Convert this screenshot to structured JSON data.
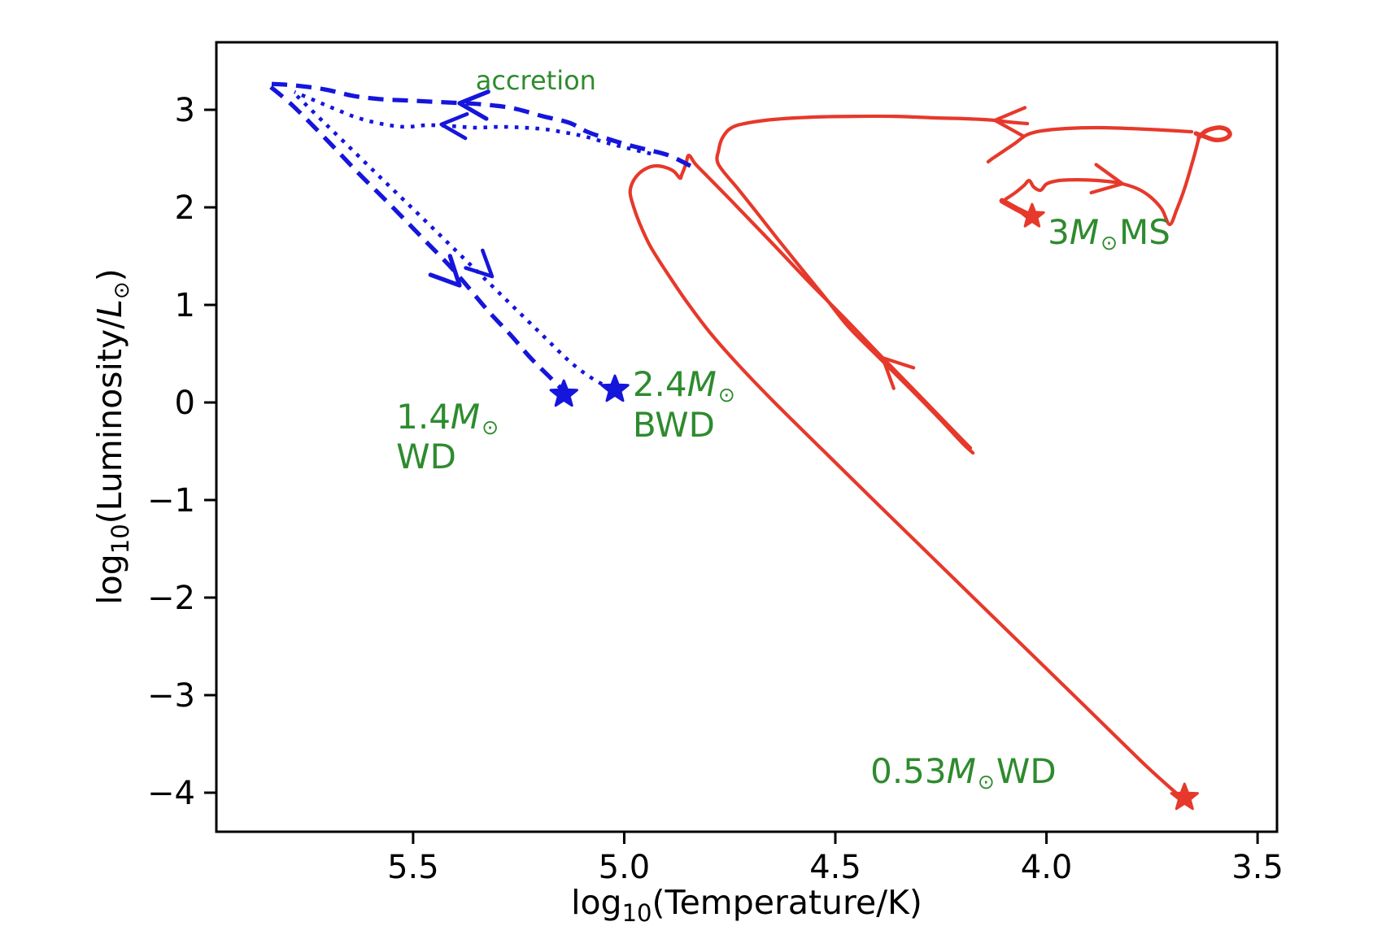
{
  "figure": {
    "background": "#ffffff"
  },
  "colors": {
    "red": "#e6392b",
    "blue": "#1515dc",
    "green": "#2e8b2e",
    "axis": "#000000"
  },
  "axes": {
    "xlim": [
      5.966,
      3.454
    ],
    "ylim": [
      -4.4,
      3.692
    ],
    "xticks": [
      {
        "v": 5.5,
        "label": "5.5"
      },
      {
        "v": 5.0,
        "label": "5.0"
      },
      {
        "v": 4.5,
        "label": "4.5"
      },
      {
        "v": 4.0,
        "label": "4.0"
      },
      {
        "v": 3.5,
        "label": "3.5"
      }
    ],
    "yticks": [
      {
        "v": 3,
        "label": "3"
      },
      {
        "v": 2,
        "label": "2"
      },
      {
        "v": 1,
        "label": "1"
      },
      {
        "v": 0,
        "label": "0"
      },
      {
        "v": -1,
        "label": "−1"
      },
      {
        "v": -2,
        "label": "−2"
      },
      {
        "v": -3,
        "label": "−3"
      },
      {
        "v": -4,
        "label": "−4"
      }
    ],
    "xlabel": {
      "pre": "log",
      "sub": "10",
      "post": "(Temperature/K)"
    },
    "ylabel": {
      "pre": "log",
      "sub": "10",
      "mid": "(Luminosity/",
      "emph": "L",
      "sun": "⊙",
      "close": ")"
    }
  },
  "chart_data": {
    "type": "line",
    "title": "",
    "xlabel": "log10(Temperature/K)",
    "ylabel": "log10(Luminosity/Lsun)",
    "x_axis_reversed": true,
    "grid": false,
    "series": [
      {
        "id": "red-ms-cusp",
        "legend": "3 Msun evolution (MS hook)",
        "color": "red",
        "style": "solid",
        "lw": 7,
        "points": [
          [
            4.034,
            1.908
          ],
          [
            4.07,
            1.983
          ],
          [
            4.105,
            2.067
          ]
        ]
      },
      {
        "id": "red-hook-sweep-rgb",
        "legend": "3 Msun evolution (MS to giant branch)",
        "color": "red",
        "style": "solid",
        "lw": 4.2,
        "points": [
          [
            4.097,
            2.083
          ],
          [
            4.074,
            2.15
          ],
          [
            4.053,
            2.225
          ],
          [
            4.041,
            2.275
          ],
          [
            4.03,
            2.208
          ],
          [
            4.014,
            2.175
          ],
          [
            3.999,
            2.242
          ],
          [
            3.97,
            2.275
          ],
          [
            3.926,
            2.283
          ],
          [
            3.878,
            2.275
          ],
          [
            3.829,
            2.25
          ],
          [
            3.785,
            2.192
          ],
          [
            3.754,
            2.108
          ],
          [
            3.727,
            1.983
          ],
          [
            3.708,
            1.825
          ],
          [
            3.691,
            1.983
          ],
          [
            3.673,
            2.192
          ],
          [
            3.658,
            2.408
          ],
          [
            3.646,
            2.592
          ],
          [
            3.639,
            2.717
          ]
        ]
      },
      {
        "id": "red-agb-blob",
        "legend": "giant-branch tip tangle",
        "color": "red",
        "style": "solid",
        "lw": 5.5,
        "points": [
          [
            3.639,
            2.717
          ],
          [
            3.625,
            2.775
          ],
          [
            3.606,
            2.808
          ],
          [
            3.587,
            2.817
          ],
          [
            3.571,
            2.792
          ],
          [
            3.566,
            2.742
          ],
          [
            3.579,
            2.7
          ],
          [
            3.602,
            2.692
          ],
          [
            3.625,
            2.725
          ],
          [
            3.646,
            2.758
          ]
        ]
      },
      {
        "id": "red-postagb-upper",
        "legend": "post-AGB zigzag",
        "color": "red",
        "style": "solid",
        "lw": 4.2,
        "points": [
          [
            3.656,
            2.775
          ],
          [
            3.724,
            2.792
          ],
          [
            3.801,
            2.808
          ],
          [
            3.878,
            2.817
          ],
          [
            3.955,
            2.808
          ],
          [
            4.013,
            2.783
          ],
          [
            4.047,
            2.742
          ],
          [
            4.074,
            2.658
          ],
          [
            4.105,
            2.567
          ],
          [
            4.128,
            2.5
          ],
          [
            4.138,
            2.467
          ]
        ]
      },
      {
        "id": "red-postagb-left-descent",
        "legend": "post-AGB leftward run and descent",
        "color": "red",
        "style": "solid",
        "lw": 4.2,
        "points": [
          [
            4.045,
            2.858
          ],
          [
            4.09,
            2.875
          ],
          [
            4.122,
            2.892
          ],
          [
            4.186,
            2.908
          ],
          [
            4.263,
            2.917
          ],
          [
            4.359,
            2.933
          ],
          [
            4.456,
            2.933
          ],
          [
            4.552,
            2.925
          ],
          [
            4.648,
            2.9
          ],
          [
            4.716,
            2.858
          ],
          [
            4.749,
            2.808
          ],
          [
            4.768,
            2.708
          ],
          [
            4.776,
            2.592
          ],
          [
            4.777,
            2.442
          ],
          [
            4.731,
            2.192
          ],
          [
            4.685,
            1.942
          ],
          [
            4.635,
            1.667
          ],
          [
            4.581,
            1.375
          ],
          [
            4.521,
            1.058
          ],
          [
            4.469,
            0.775
          ],
          [
            4.396,
            0.458
          ],
          [
            4.319,
            0.125
          ],
          [
            4.253,
            -0.167
          ],
          [
            4.199,
            -0.417
          ],
          [
            4.174,
            -0.517
          ]
        ]
      },
      {
        "id": "red-ascent-spike-wd",
        "legend": "re-ascent, knee and WD cooling to 0.53 Msun WD",
        "color": "red",
        "style": "solid",
        "lw": 4.2,
        "points": [
          [
            4.18,
            -0.467
          ],
          [
            4.244,
            -0.183
          ],
          [
            4.311,
            0.117
          ],
          [
            4.388,
            0.458
          ],
          [
            4.475,
            0.85
          ],
          [
            4.562,
            1.233
          ],
          [
            4.648,
            1.625
          ],
          [
            4.735,
            2.017
          ],
          [
            4.799,
            2.3
          ],
          [
            4.831,
            2.442
          ],
          [
            4.847,
            2.533
          ],
          [
            4.854,
            2.442
          ],
          [
            4.864,
            2.333
          ],
          [
            4.868,
            2.3
          ],
          [
            4.882,
            2.367
          ],
          [
            4.901,
            2.408
          ],
          [
            4.924,
            2.425
          ],
          [
            4.943,
            2.408
          ],
          [
            4.964,
            2.35
          ],
          [
            4.98,
            2.258
          ],
          [
            4.986,
            2.15
          ],
          [
            4.978,
            2.008
          ],
          [
            4.964,
            1.842
          ],
          [
            4.939,
            1.608
          ],
          [
            4.903,
            1.358
          ],
          [
            4.855,
            1.05
          ],
          [
            4.797,
            0.717
          ],
          [
            4.731,
            0.392
          ],
          [
            4.648,
            0.017
          ],
          [
            4.533,
            -0.475
          ],
          [
            4.398,
            -1.05
          ],
          [
            4.244,
            -1.7
          ],
          [
            4.08,
            -2.392
          ],
          [
            3.916,
            -3.083
          ],
          [
            3.766,
            -3.717
          ],
          [
            3.685,
            -4.033
          ]
        ]
      },
      {
        "id": "blue-dashed-accretion-up",
        "legend": "accretion track (dashed) to hot apex",
        "color": "blue",
        "style": "dashed",
        "lw": 5.3,
        "points": [
          [
            4.843,
            2.425
          ],
          [
            4.895,
            2.533
          ],
          [
            4.947,
            2.592
          ],
          [
            4.999,
            2.65
          ],
          [
            5.043,
            2.708
          ],
          [
            5.088,
            2.775
          ],
          [
            5.13,
            2.867
          ],
          [
            5.192,
            2.933
          ],
          [
            5.265,
            3.017
          ],
          [
            5.342,
            3.058
          ],
          [
            5.419,
            3.075
          ],
          [
            5.496,
            3.092
          ],
          [
            5.573,
            3.108
          ],
          [
            5.641,
            3.142
          ],
          [
            5.708,
            3.208
          ],
          [
            5.781,
            3.25
          ],
          [
            5.843,
            3.267
          ]
        ]
      },
      {
        "id": "blue-dashed-cooling-down",
        "legend": "dashed cooling to 1.4 Msun WD",
        "color": "blue",
        "style": "dashed",
        "lw": 5.3,
        "points": [
          [
            5.837,
            3.233
          ],
          [
            5.785,
            3.042
          ],
          [
            5.708,
            2.708
          ],
          [
            5.631,
            2.358
          ],
          [
            5.554,
            2.025
          ],
          [
            5.477,
            1.683
          ],
          [
            5.403,
            1.35
          ],
          [
            5.323,
            0.942
          ],
          [
            5.269,
            0.692
          ],
          [
            5.222,
            0.458
          ],
          [
            5.178,
            0.267
          ],
          [
            5.143,
            0.117
          ]
        ]
      },
      {
        "id": "blue-dotted-accretion-up",
        "legend": "accretion track (dotted) to hot apex",
        "color": "blue",
        "style": "dotted",
        "lw": 4.6,
        "points": [
          [
            4.937,
            2.55
          ],
          [
            4.986,
            2.6
          ],
          [
            5.038,
            2.658
          ],
          [
            5.092,
            2.725
          ],
          [
            5.14,
            2.767
          ],
          [
            5.188,
            2.8
          ],
          [
            5.236,
            2.817
          ],
          [
            5.294,
            2.825
          ],
          [
            5.352,
            2.817
          ],
          [
            5.41,
            2.833
          ],
          [
            5.467,
            2.842
          ],
          [
            5.521,
            2.825
          ],
          [
            5.577,
            2.858
          ],
          [
            5.631,
            2.917
          ],
          [
            5.685,
            3.008
          ],
          [
            5.731,
            3.092
          ],
          [
            5.781,
            3.183
          ]
        ]
      },
      {
        "id": "blue-dotted-cooling-down",
        "legend": "dotted cooling to 2.4 Msun BWD",
        "color": "blue",
        "style": "dotted",
        "lw": 4.6,
        "points": [
          [
            5.775,
            3.142
          ],
          [
            5.708,
            2.858
          ],
          [
            5.635,
            2.55
          ],
          [
            5.562,
            2.242
          ],
          [
            5.488,
            1.933
          ],
          [
            5.415,
            1.625
          ],
          [
            5.342,
            1.317
          ],
          [
            5.269,
            1.008
          ],
          [
            5.196,
            0.7
          ],
          [
            5.126,
            0.408
          ],
          [
            5.068,
            0.225
          ],
          [
            5.03,
            0.15
          ]
        ]
      }
    ],
    "markers": [
      {
        "id": "star-1.4-wd",
        "shape": "star",
        "color": "blue",
        "R": 17,
        "r": 7.2,
        "at": [
          5.143,
          0.083
        ]
      },
      {
        "id": "star-2.4-bwd",
        "shape": "star",
        "color": "blue",
        "R": 17,
        "r": 7.2,
        "at": [
          5.022,
          0.133
        ]
      },
      {
        "id": "star-3-ms",
        "shape": "star",
        "color": "red",
        "R": 15,
        "r": 6.4,
        "at": [
          4.034,
          1.908
        ]
      },
      {
        "id": "star-0.53-wd",
        "shape": "star",
        "color": "red",
        "R": 17,
        "r": 7.2,
        "at": [
          3.673,
          -4.05
        ]
      }
    ],
    "arrows": [
      {
        "id": "arrow-dashed-accretion",
        "color": "blue",
        "lw": 5.3,
        "len": 38,
        "angle": 184,
        "at": [
          5.39,
          3.067
        ]
      },
      {
        "id": "arrow-dotted-accretion",
        "color": "blue",
        "lw": 4.6,
        "len": 34,
        "angle": 184,
        "at": [
          5.433,
          2.85
        ]
      },
      {
        "id": "arrow-dashed-cooling",
        "color": "blue",
        "lw": 5.3,
        "len": 38,
        "angle": 46,
        "at": [
          5.39,
          1.2
        ]
      },
      {
        "id": "arrow-dotted-cooling",
        "color": "blue",
        "lw": 4.6,
        "len": 34,
        "angle": 44,
        "at": [
          5.313,
          1.292
        ]
      },
      {
        "id": "arrow-red-sweep-right",
        "color": "red",
        "lw": 4.2,
        "len": 40,
        "angle": 10,
        "at": [
          3.82,
          2.242
        ]
      },
      {
        "id": "arrow-red-postagb-left",
        "color": "red",
        "lw": 4.2,
        "len": 40,
        "angle": 183,
        "at": [
          4.122,
          2.892
        ]
      },
      {
        "id": "arrow-red-ascent",
        "color": "red",
        "lw": 4.2,
        "len": 40,
        "angle": 224,
        "at": [
          4.388,
          0.458
        ]
      }
    ],
    "annotations": [
      {
        "id": "accretion",
        "at": [
          5.352,
          3.442
        ],
        "size": 32,
        "parts": [
          {
            "t": "accretion"
          }
        ],
        "line2": ""
      },
      {
        "id": "1.4msun-wd",
        "at": [
          5.54,
          0.042
        ],
        "size": 42,
        "parts": [
          {
            "t": "1.4"
          },
          {
            "t": "M",
            "i": true
          },
          {
            "t": "⊙",
            "sun": true
          }
        ],
        "line2": "WD"
      },
      {
        "id": "2.4msun-bwd",
        "at": [
          4.98,
          0.375
        ],
        "size": 42,
        "parts": [
          {
            "t": "2.4"
          },
          {
            "t": "M",
            "i": true
          },
          {
            "t": "⊙",
            "sun": true
          }
        ],
        "line2": "BWD"
      },
      {
        "id": "3msun-ms",
        "at": [
          3.997,
          1.933
        ],
        "size": 42,
        "parts": [
          {
            "t": "3"
          },
          {
            "t": "M",
            "i": true
          },
          {
            "t": "⊙",
            "sun": true
          },
          {
            "t": "MS"
          }
        ],
        "line2": ""
      },
      {
        "id": "0.53msun-wd",
        "at": [
          4.417,
          -3.592
        ],
        "size": 42,
        "parts": [
          {
            "t": "0.53"
          },
          {
            "t": "M",
            "i": true
          },
          {
            "t": "⊙",
            "sun": true
          },
          {
            "t": "WD"
          }
        ],
        "line2": ""
      }
    ]
  }
}
